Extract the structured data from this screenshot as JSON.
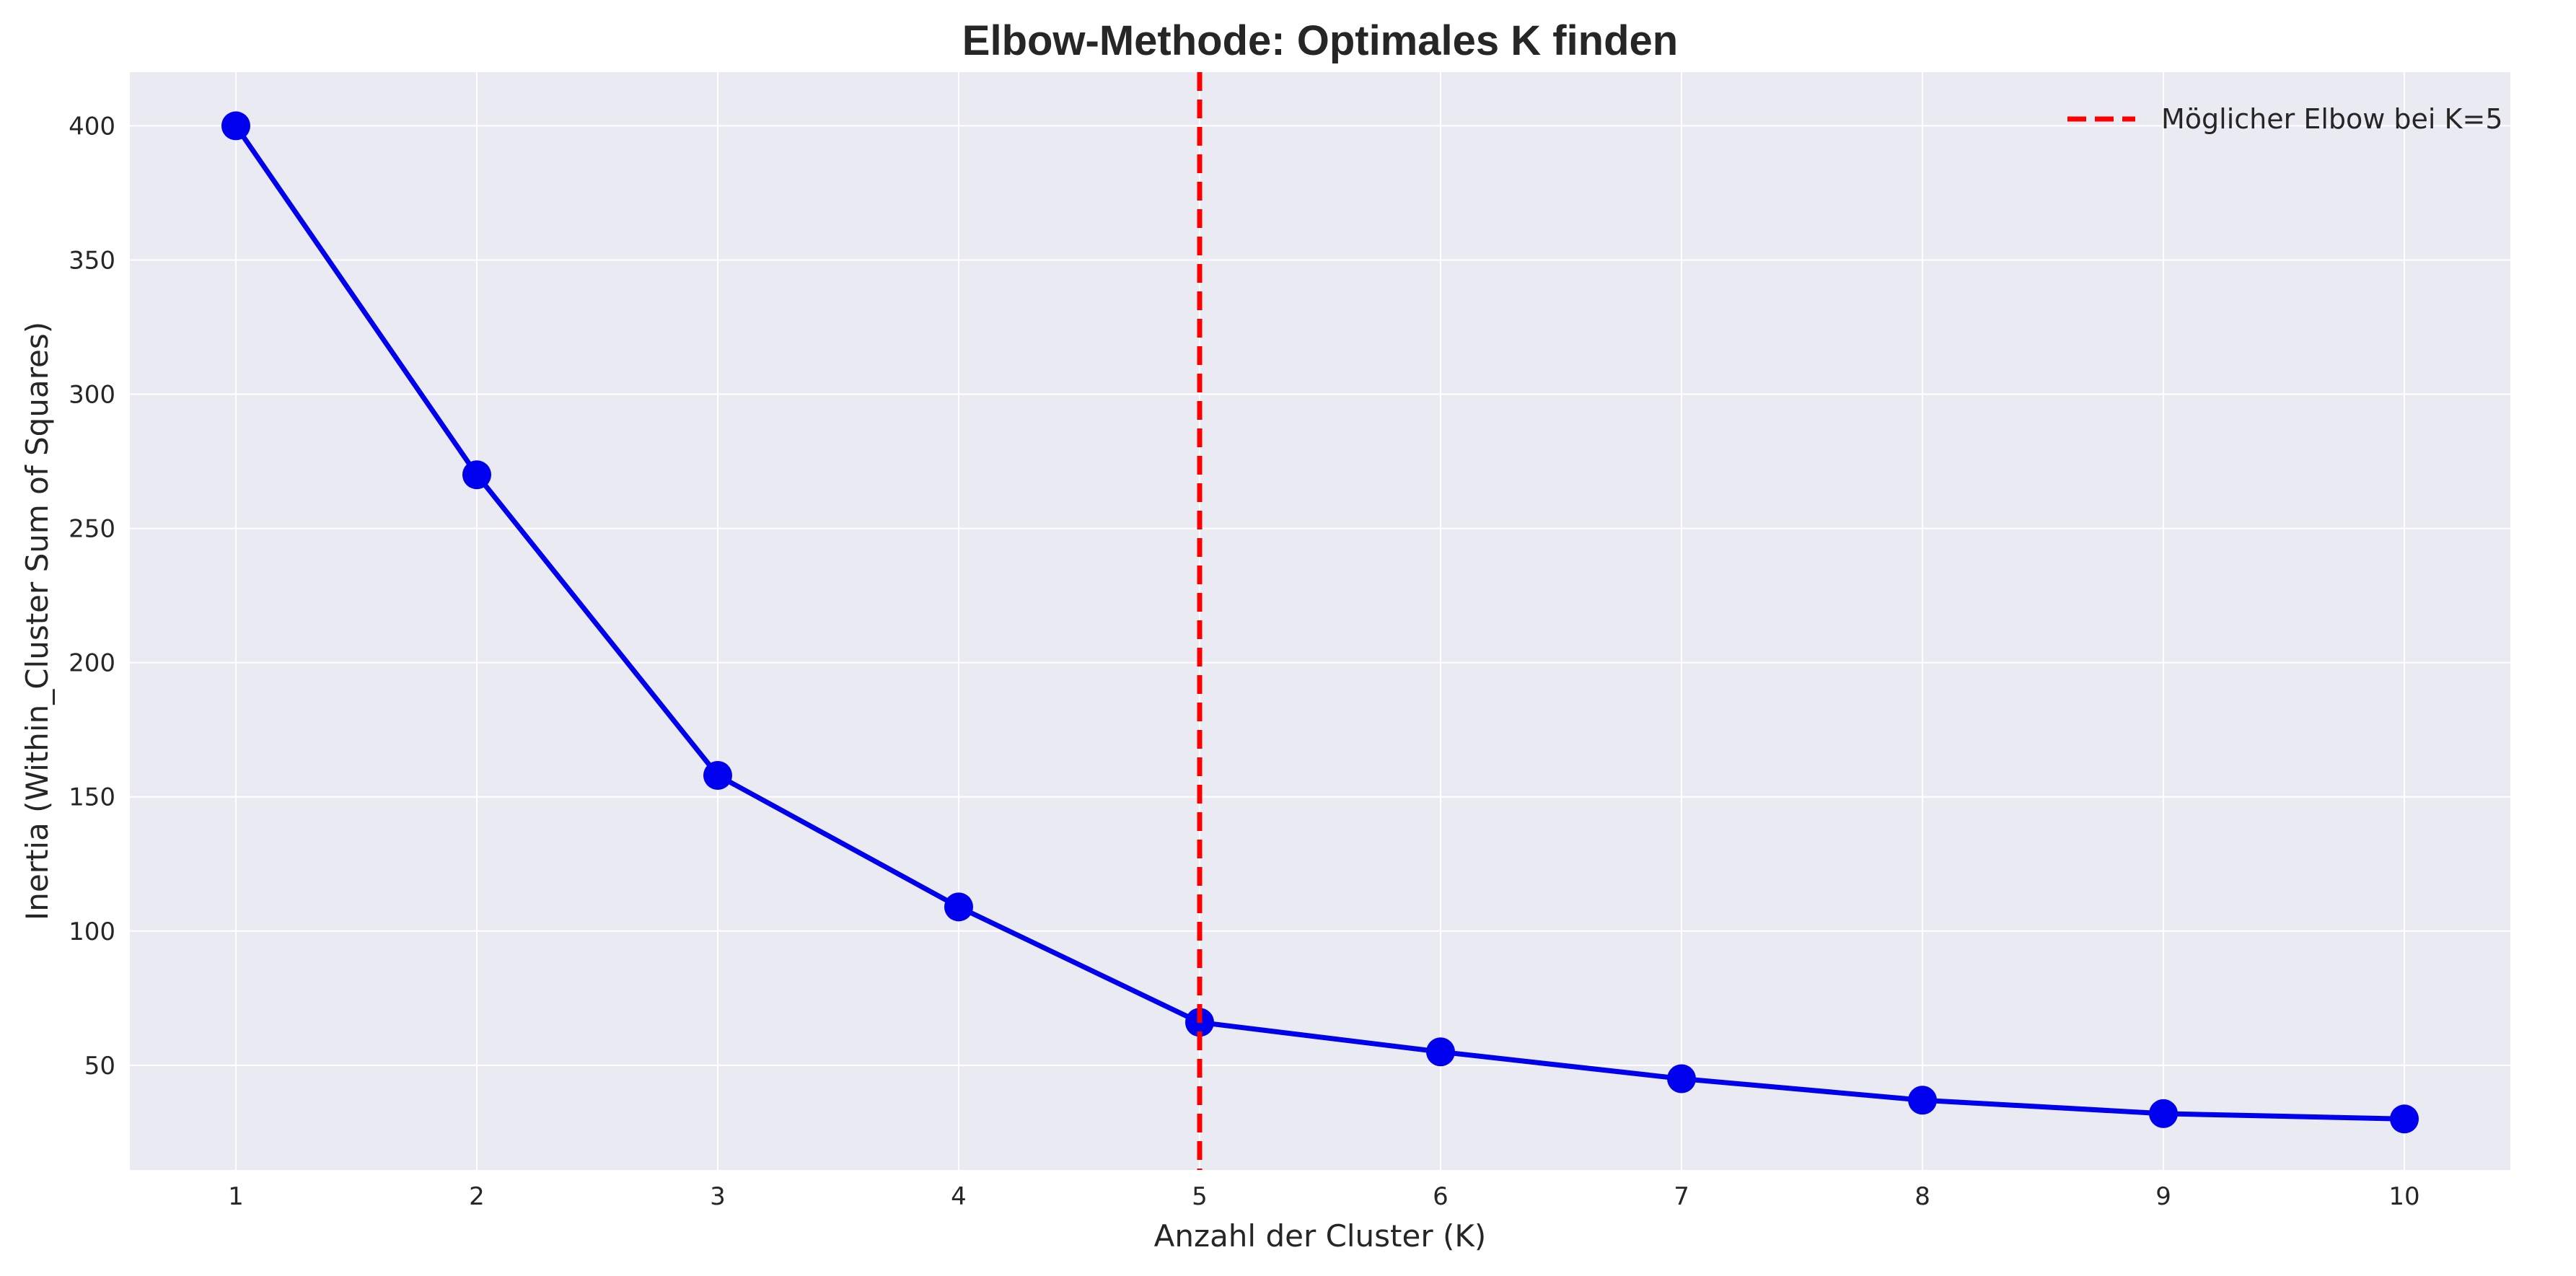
{
  "chart_data": {
    "type": "line",
    "title": "Elbow-Methode: Optimales K finden",
    "xlabel": "Anzahl der Cluster (K)",
    "ylabel": "Inertia (Within_Cluster Sum of Squares)",
    "x": [
      1,
      2,
      3,
      4,
      5,
      6,
      7,
      8,
      9,
      10
    ],
    "xticks": [
      "1",
      "2",
      "3",
      "4",
      "5",
      "6",
      "7",
      "8",
      "9",
      "10"
    ],
    "yticks": [
      "50",
      "100",
      "150",
      "200",
      "250",
      "300",
      "350",
      "400"
    ],
    "xlim": [
      0.56,
      10.44
    ],
    "ylim": [
      11,
      420
    ],
    "series": [
      {
        "values": [
          400,
          270,
          158,
          109,
          66,
          55,
          45,
          37,
          32,
          30
        ],
        "color": "#0000ee"
      }
    ],
    "vline": {
      "x": 5,
      "label": "Möglicher Elbow bei K=5",
      "color": "#ff0000"
    },
    "legend": "top-right",
    "grid": true,
    "background": "#eaeaf2"
  }
}
